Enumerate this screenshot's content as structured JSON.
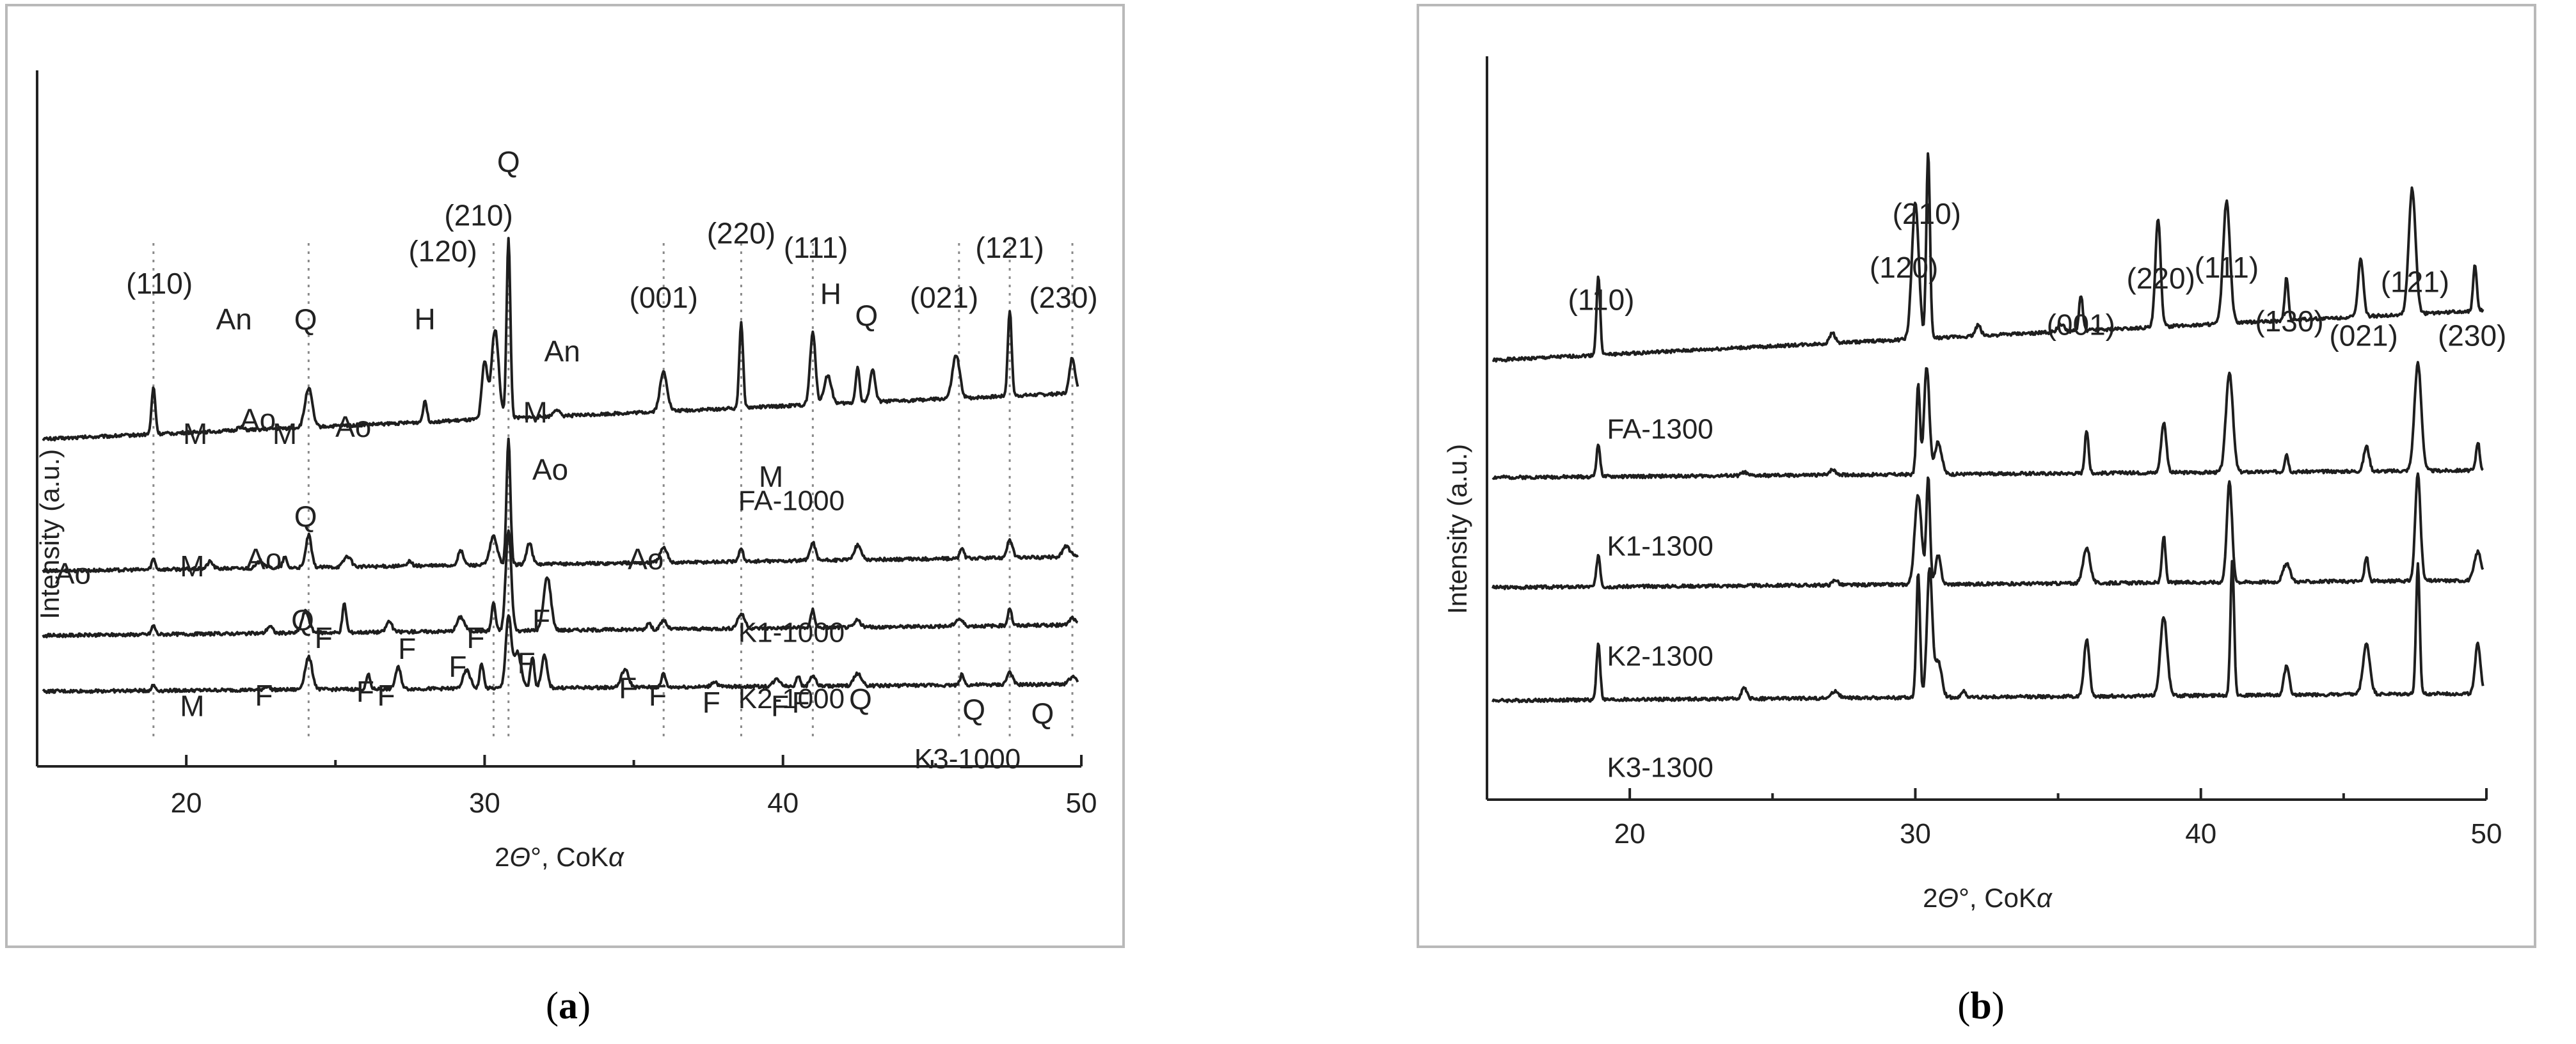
{
  "chart_data": [
    {
      "panel": "a",
      "caption": {
        "open": "(",
        "letter": "a",
        "close": ")"
      },
      "type": "line",
      "xlabel": {
        "pre": "2",
        "theta": "Θ",
        "deg": "°",
        "mid": ", CoK",
        "alpha": "α"
      },
      "ylabel": "Intensity (a.u.)",
      "xlim": [
        15,
        50
      ],
      "xticks": [
        20,
        30,
        40,
        50
      ],
      "ref_lines": [
        18.9,
        24.1,
        30.3,
        30.8,
        36.0,
        38.6,
        41.0,
        45.9,
        47.6,
        49.7
      ],
      "series": [
        {
          "name": "FA-1000",
          "name_at": [
            38.5,
            -0.55
          ],
          "baseline": 0.95,
          "drift": 1.3,
          "peaks": [
            [
              18.9,
              1.3
            ],
            [
              21.8,
              0.1
            ],
            [
              24.1,
              1.1
            ],
            [
              28.0,
              0.6
            ],
            [
              30.0,
              1.6
            ],
            [
              30.35,
              2.5
            ],
            [
              30.8,
              5.0
            ],
            [
              32.4,
              0.2
            ],
            [
              36.0,
              1.1
            ],
            [
              38.6,
              2.4
            ],
            [
              41.0,
              2.0
            ],
            [
              41.5,
              0.8
            ],
            [
              42.5,
              1.0
            ],
            [
              43.0,
              0.9
            ],
            [
              45.8,
              1.2
            ],
            [
              47.6,
              2.4
            ],
            [
              49.7,
              1.0
            ]
          ]
        },
        {
          "name": "K1-1000",
          "name_at": [
            38.5,
            -0.55
          ],
          "baseline": 0.95,
          "drift": 0.4,
          "peaks": [
            [
              18.9,
              0.3
            ],
            [
              20.8,
              0.2
            ],
            [
              22.5,
              0.2
            ],
            [
              23.3,
              0.3
            ],
            [
              24.1,
              0.9
            ],
            [
              25.4,
              0.3
            ],
            [
              27.5,
              0.15
            ],
            [
              29.2,
              0.4
            ],
            [
              30.3,
              0.8
            ],
            [
              30.8,
              3.5
            ],
            [
              31.5,
              0.6
            ],
            [
              36.0,
              0.4
            ],
            [
              38.6,
              0.4
            ],
            [
              41.0,
              0.5
            ],
            [
              42.5,
              0.4
            ],
            [
              46.0,
              0.3
            ],
            [
              47.6,
              0.5
            ],
            [
              49.5,
              0.3
            ]
          ]
        },
        {
          "name": "K2-1000",
          "name_at": [
            38.5,
            -0.6
          ],
          "baseline": 0.9,
          "drift": 0.3,
          "peaks": [
            [
              18.9,
              0.25
            ],
            [
              22.8,
              0.2
            ],
            [
              24.0,
              0.6
            ],
            [
              25.3,
              0.8
            ],
            [
              26.8,
              0.3
            ],
            [
              29.2,
              0.4
            ],
            [
              30.3,
              0.8
            ],
            [
              30.8,
              2.8
            ],
            [
              32.1,
              1.5
            ],
            [
              35.5,
              0.2
            ],
            [
              36.0,
              0.25
            ],
            [
              38.6,
              0.4
            ],
            [
              41.0,
              0.5
            ],
            [
              42.5,
              0.2
            ],
            [
              45.9,
              0.2
            ],
            [
              47.6,
              0.5
            ],
            [
              49.7,
              0.2
            ]
          ]
        },
        {
          "name": "K3-1000",
          "name_at": [
            44.4,
            -0.72
          ],
          "baseline": 0.7,
          "drift": 0.2,
          "peaks": [
            [
              18.9,
              0.15
            ],
            [
              22.7,
              0.1
            ],
            [
              24.1,
              0.9
            ],
            [
              26.1,
              0.4
            ],
            [
              27.1,
              0.6
            ],
            [
              29.4,
              0.5
            ],
            [
              29.9,
              0.7
            ],
            [
              30.8,
              2.0
            ],
            [
              31.1,
              1.0
            ],
            [
              31.6,
              0.9
            ],
            [
              32.0,
              0.9
            ],
            [
              34.7,
              0.5
            ],
            [
              36.0,
              0.4
            ],
            [
              37.7,
              0.15
            ],
            [
              39.8,
              0.2
            ],
            [
              40.5,
              0.3
            ],
            [
              41.0,
              0.3
            ],
            [
              42.5,
              0.35
            ],
            [
              46.0,
              0.3
            ],
            [
              47.6,
              0.35
            ],
            [
              49.7,
              0.2
            ]
          ]
        }
      ],
      "annotations": [
        {
          "text": "Q",
          "at": [
            30.8,
            15.35
          ]
        },
        {
          "text": "(210)",
          "at": [
            29.8,
            13.85
          ]
        },
        {
          "text": "(120)",
          "at": [
            28.6,
            12.85
          ]
        },
        {
          "text": "(110)",
          "at": [
            19.1,
            11.95
          ]
        },
        {
          "text": "Q",
          "at": [
            24.0,
            10.95
          ]
        },
        {
          "text": "H",
          "at": [
            28.0,
            10.95
          ]
        },
        {
          "text": "An",
          "at": [
            21.6,
            10.95
          ]
        },
        {
          "text": "An",
          "at": [
            32.6,
            10.05
          ]
        },
        {
          "text": "(001)",
          "at": [
            36.0,
            11.55
          ]
        },
        {
          "text": "(220)",
          "at": [
            38.6,
            13.35
          ]
        },
        {
          "text": "(111)",
          "at": [
            41.1,
            12.95
          ]
        },
        {
          "text": "H",
          "at": [
            41.6,
            11.65
          ]
        },
        {
          "text": "Q",
          "at": [
            42.8,
            11.05
          ]
        },
        {
          "text": "(021)",
          "at": [
            45.4,
            11.55
          ]
        },
        {
          "text": "(121)",
          "at": [
            47.6,
            12.95
          ]
        },
        {
          "text": "(230)",
          "at": [
            49.4,
            11.55
          ]
        },
        {
          "text": "M",
          "at": [
            20.3,
            7.75
          ]
        },
        {
          "text": "Ao",
          "at": [
            22.4,
            8.15
          ]
        },
        {
          "text": "M",
          "at": [
            23.3,
            7.75
          ]
        },
        {
          "text": "Ao",
          "at": [
            25.6,
            7.95
          ]
        },
        {
          "text": "M",
          "at": [
            31.7,
            8.35
          ]
        },
        {
          "text": "M",
          "at": [
            39.6,
            6.55
          ]
        },
        {
          "text": "Ao",
          "at": [
            16.2,
            3.85
          ]
        },
        {
          "text": "M",
          "at": [
            20.2,
            4.05
          ]
        },
        {
          "text": "Q",
          "at": [
            24.0,
            5.45
          ]
        },
        {
          "text": "Ao",
          "at": [
            22.6,
            4.25
          ]
        },
        {
          "text": "Ao",
          "at": [
            32.2,
            6.75
          ]
        },
        {
          "text": "Ao",
          "at": [
            35.4,
            4.25
          ]
        },
        {
          "text": "Q",
          "at": [
            23.9,
            2.55
          ]
        },
        {
          "text": "F",
          "at": [
            24.6,
            2.05
          ]
        },
        {
          "text": "M",
          "at": [
            20.2,
            0.15
          ]
        },
        {
          "text": "F",
          "at": [
            22.6,
            0.45
          ]
        },
        {
          "text": "F",
          "at": [
            26.0,
            0.55
          ]
        },
        {
          "text": "F",
          "at": [
            26.7,
            0.45
          ]
        },
        {
          "text": "F",
          "at": [
            27.4,
            1.75
          ]
        },
        {
          "text": "F",
          "at": [
            29.1,
            1.25
          ]
        },
        {
          "text": "F",
          "at": [
            29.7,
            2.05
          ]
        },
        {
          "text": "F",
          "at": [
            31.4,
            1.35
          ]
        },
        {
          "text": "F",
          "at": [
            31.9,
            2.55
          ]
        },
        {
          "text": "F",
          "at": [
            34.8,
            0.65
          ]
        },
        {
          "text": "F",
          "at": [
            35.8,
            0.45
          ]
        },
        {
          "text": "F",
          "at": [
            37.6,
            0.25
          ]
        },
        {
          "text": "F",
          "at": [
            39.9,
            0.15
          ]
        },
        {
          "text": "F",
          "at": [
            40.6,
            0.25
          ]
        },
        {
          "text": "Q",
          "at": [
            42.6,
            0.35
          ]
        },
        {
          "text": "Q",
          "at": [
            46.4,
            0.05
          ]
        },
        {
          "text": "Q",
          "at": [
            48.7,
            -0.05
          ]
        }
      ]
    },
    {
      "panel": "b",
      "caption": {
        "open": "(",
        "letter": "b",
        "close": ")"
      },
      "type": "line",
      "xlabel": {
        "pre": "2",
        "theta": "Θ",
        "deg": "°",
        "mid": ", CoK",
        "alpha": "α"
      },
      "ylabel": "Intensity (a.u.)",
      "xlim": [
        15,
        50
      ],
      "xticks": [
        20,
        30,
        40,
        50
      ],
      "series": [
        {
          "name": "FA-1300",
          "name_at": [
            19.2,
            -0.75
          ],
          "baseline": 0.9,
          "drift": 1.4,
          "peaks": [
            [
              18.9,
              2.2
            ],
            [
              27.1,
              0.3
            ],
            [
              30.0,
              3.8
            ],
            [
              30.45,
              5.2
            ],
            [
              32.2,
              0.3
            ],
            [
              35.1,
              0.2
            ],
            [
              35.8,
              1.0
            ],
            [
              38.5,
              3.0
            ],
            [
              40.9,
              3.4
            ],
            [
              43.0,
              1.2
            ],
            [
              45.6,
              1.6
            ],
            [
              47.4,
              3.5
            ],
            [
              49.6,
              1.3
            ]
          ]
        },
        {
          "name": "K1-1300",
          "name_at": [
            19.2,
            -0.75
          ],
          "baseline": 0.85,
          "drift": 0.2,
          "peaks": [
            [
              18.9,
              0.9
            ],
            [
              24.0,
              0.1
            ],
            [
              27.1,
              0.15
            ],
            [
              30.1,
              2.5
            ],
            [
              30.4,
              3.0
            ],
            [
              30.8,
              0.9
            ],
            [
              36.0,
              1.2
            ],
            [
              38.7,
              1.4
            ],
            [
              41.0,
              2.8
            ],
            [
              43.0,
              0.5
            ],
            [
              45.8,
              0.7
            ],
            [
              47.6,
              3.0
            ],
            [
              49.7,
              0.8
            ]
          ]
        },
        {
          "name": "K2-1300",
          "name_at": [
            19.2,
            -0.75
          ],
          "baseline": 0.85,
          "drift": 0.2,
          "peaks": [
            [
              18.9,
              0.9
            ],
            [
              27.2,
              0.15
            ],
            [
              30.1,
              2.5
            ],
            [
              30.45,
              3.0
            ],
            [
              30.8,
              0.8
            ],
            [
              36.0,
              1.0
            ],
            [
              38.7,
              1.3
            ],
            [
              41.0,
              2.8
            ],
            [
              43.0,
              0.5
            ],
            [
              45.8,
              0.7
            ],
            [
              47.6,
              3.0
            ],
            [
              49.7,
              0.8
            ]
          ]
        },
        {
          "name": "K3-1300",
          "name_at": [
            19.2,
            -0.7
          ],
          "baseline": 0.8,
          "drift": 0.2,
          "peaks": [
            [
              18.9,
              1.6
            ],
            [
              24.0,
              0.3
            ],
            [
              27.2,
              0.2
            ],
            [
              30.1,
              3.5
            ],
            [
              30.5,
              3.6
            ],
            [
              30.8,
              1.0
            ],
            [
              31.7,
              0.2
            ],
            [
              36.0,
              1.6
            ],
            [
              38.7,
              2.2
            ],
            [
              41.1,
              3.8
            ],
            [
              43.0,
              0.8
            ],
            [
              45.8,
              1.4
            ],
            [
              47.6,
              3.6
            ],
            [
              49.7,
              1.4
            ]
          ]
        }
      ],
      "annotations": [
        {
          "text": "(110)",
          "at": [
            19.0,
            11.85
          ]
        },
        {
          "text": "(120)",
          "at": [
            29.6,
            12.75
          ]
        },
        {
          "text": "(210)",
          "at": [
            30.4,
            14.25
          ]
        },
        {
          "text": "(001)",
          "at": [
            35.8,
            11.15
          ]
        },
        {
          "text": "(220)",
          "at": [
            38.6,
            12.45
          ]
        },
        {
          "text": "(111)",
          "at": [
            40.9,
            12.75
          ]
        },
        {
          "text": "(130)",
          "at": [
            43.1,
            11.25
          ]
        },
        {
          "text": "(021)",
          "at": [
            45.7,
            10.85
          ]
        },
        {
          "text": "(121)",
          "at": [
            47.5,
            12.35
          ]
        },
        {
          "text": "(230)",
          "at": [
            49.5,
            10.85
          ]
        }
      ]
    }
  ]
}
